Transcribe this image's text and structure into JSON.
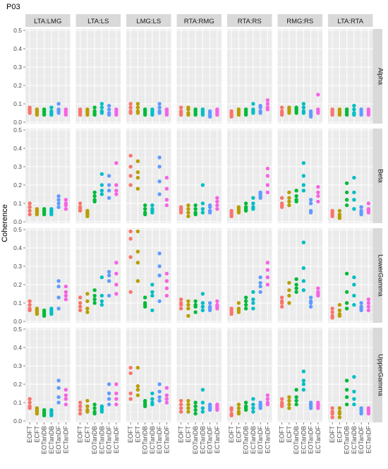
{
  "chart_data": {
    "type": "scatter",
    "title": "P03",
    "ylabel": "Coherence",
    "xlabel": "",
    "ylim": [
      0,
      0.5
    ],
    "y_ticks": [
      "0.0",
      "0.1",
      "0.2",
      "0.3",
      "0.4",
      "0.5"
    ],
    "categories": [
      "EOFT",
      "ECFT",
      "EOTanDB",
      "ECTanDB",
      "EOTanDF",
      "ECTanDF"
    ],
    "colors": [
      "#F8766D",
      "#B79F00",
      "#00BA38",
      "#00BFC4",
      "#619CFF",
      "#F564E3"
    ],
    "grid": true,
    "legend": "none",
    "columns": [
      "LTA:LMG",
      "LTA:LS",
      "LMG:LS",
      "RTA:RMG",
      "RTA:RS",
      "RMG:RS",
      "LTA:RTA"
    ],
    "rows": [
      "Alpha",
      "Beta",
      "LowerGamma",
      "UpperGamma"
    ],
    "panels": [
      [
        [
          [
            0.07,
            0.06,
            0.05,
            0.08
          ],
          [
            0.07,
            0.06,
            0.05,
            0.04
          ],
          [
            0.06,
            0.05,
            0.04,
            0.07
          ],
          [
            0.08,
            0.06,
            0.05,
            0.04
          ],
          [
            0.1,
            0.07,
            0.06,
            0.05
          ],
          [
            0.06,
            0.05,
            0.04,
            0.07
          ]
        ],
        [
          [
            0.07,
            0.06,
            0.05,
            0.04
          ],
          [
            0.07,
            0.06,
            0.05,
            0.04
          ],
          [
            0.08,
            0.06,
            0.05,
            0.04
          ],
          [
            0.1,
            0.08,
            0.06,
            0.05
          ],
          [
            0.09,
            0.07,
            0.05,
            0.04
          ],
          [
            0.07,
            0.06,
            0.05,
            0.04
          ]
        ],
        [
          [
            0.1,
            0.08,
            0.06,
            0.05
          ],
          [
            0.1,
            0.08,
            0.06,
            0.05
          ],
          [
            0.07,
            0.06,
            0.05,
            0.04
          ],
          [
            0.07,
            0.06,
            0.05,
            0.04
          ],
          [
            0.1,
            0.08,
            0.06,
            0.05
          ],
          [
            0.06,
            0.05,
            0.04,
            0.07
          ]
        ],
        [
          [
            0.08,
            0.06,
            0.05,
            0.04
          ],
          [
            0.08,
            0.07,
            0.05,
            0.04
          ],
          [
            0.07,
            0.06,
            0.05,
            0.04
          ],
          [
            0.07,
            0.06,
            0.05,
            0.04
          ],
          [
            0.06,
            0.05,
            0.04,
            0.03
          ],
          [
            0.06,
            0.05,
            0.04,
            0.07
          ]
        ],
        [
          [
            0.06,
            0.05,
            0.04,
            0.03
          ],
          [
            0.06,
            0.05,
            0.04,
            0.07
          ],
          [
            0.06,
            0.05,
            0.04,
            0.07
          ],
          [
            0.1,
            0.07,
            0.06,
            0.05
          ],
          [
            0.09,
            0.08,
            0.06,
            0.05
          ],
          [
            0.12,
            0.1,
            0.08,
            0.07
          ]
        ],
        [
          [
            0.08,
            0.06,
            0.05,
            0.04
          ],
          [
            0.08,
            0.07,
            0.06,
            0.05
          ],
          [
            0.08,
            0.07,
            0.06,
            0.05
          ],
          [
            0.1,
            0.08,
            0.06,
            0.05
          ],
          [
            0.06,
            0.05,
            0.04,
            0.03
          ],
          [
            0.15,
            0.07,
            0.06,
            0.05
          ]
        ],
        [
          [
            0.06,
            0.05,
            0.04,
            0.07
          ],
          [
            0.06,
            0.05,
            0.04,
            0.07
          ],
          [
            0.07,
            0.06,
            0.05,
            0.04
          ],
          [
            0.09,
            0.07,
            0.05,
            0.04
          ],
          [
            0.06,
            0.05,
            0.04,
            0.07
          ],
          [
            0.07,
            0.06,
            0.05,
            0.04
          ]
        ]
      ],
      [
        [
          [
            0.1,
            0.08,
            0.06,
            0.04
          ],
          [
            0.07,
            0.06,
            0.05,
            0.04
          ],
          [
            0.07,
            0.06,
            0.05,
            0.04
          ],
          [
            0.06,
            0.05,
            0.04,
            0.07
          ],
          [
            0.14,
            0.12,
            0.1,
            0.08
          ],
          [
            0.12,
            0.1,
            0.09,
            0.07
          ]
        ],
        [
          [
            0.1,
            0.08,
            0.07,
            0.06
          ],
          [
            0.06,
            0.05,
            0.04,
            0.03
          ],
          [
            0.16,
            0.14,
            0.12,
            0.11
          ],
          [
            0.26,
            0.2,
            0.17,
            0.15
          ],
          [
            0.25,
            0.2,
            0.17,
            0.13
          ],
          [
            0.32,
            0.2,
            0.17,
            0.15
          ]
        ],
        [
          [
            0.36,
            0.3,
            0.25,
            0.2
          ],
          [
            0.33,
            0.27,
            0.24,
            0.18
          ],
          [
            0.09,
            0.07,
            0.05,
            0.04
          ],
          [
            0.09,
            0.07,
            0.06,
            0.05
          ],
          [
            0.35,
            0.3,
            0.22,
            0.15
          ],
          [
            0.24,
            0.18,
            0.12,
            0.09
          ]
        ],
        [
          [
            0.08,
            0.07,
            0.06,
            0.05
          ],
          [
            0.09,
            0.07,
            0.05,
            0.03
          ],
          [
            0.09,
            0.07,
            0.05,
            0.04
          ],
          [
            0.2,
            0.1,
            0.07,
            0.05
          ],
          [
            0.09,
            0.08,
            0.06,
            0.05
          ],
          [
            0.13,
            0.11,
            0.09,
            0.07
          ]
        ],
        [
          [
            0.06,
            0.05,
            0.04,
            0.03
          ],
          [
            0.08,
            0.07,
            0.06,
            0.05
          ],
          [
            0.1,
            0.08,
            0.07,
            0.06
          ],
          [
            0.13,
            0.1,
            0.08,
            0.07
          ],
          [
            0.16,
            0.15,
            0.14,
            0.13
          ],
          [
            0.29,
            0.25,
            0.2,
            0.16
          ]
        ],
        [
          [
            0.13,
            0.1,
            0.09,
            0.08
          ],
          [
            0.16,
            0.13,
            0.11,
            0.09
          ],
          [
            0.17,
            0.14,
            0.12,
            0.11
          ],
          [
            0.32,
            0.25,
            0.2,
            0.17
          ],
          [
            0.12,
            0.1,
            0.06,
            0.05
          ],
          [
            0.19,
            0.16,
            0.14,
            0.11
          ]
        ],
        [
          [
            0.06,
            0.05,
            0.04,
            0.03
          ],
          [
            0.06,
            0.04,
            0.03,
            0.02
          ],
          [
            0.21,
            0.16,
            0.12,
            0.09
          ],
          [
            0.24,
            0.16,
            0.12,
            0.07
          ],
          [
            0.08,
            0.06,
            0.05,
            0.04
          ],
          [
            0.1,
            0.07,
            0.06,
            0.05
          ]
        ]
      ],
      [
        [
          [
            0.11,
            0.09,
            0.07,
            0.06
          ],
          [
            0.07,
            0.06,
            0.05,
            0.04
          ],
          [
            0.06,
            0.05,
            0.04,
            0.03
          ],
          [
            0.07,
            0.06,
            0.05,
            0.04
          ],
          [
            0.22,
            0.19,
            0.13,
            0.07
          ],
          [
            0.19,
            0.16,
            0.14,
            0.12
          ]
        ],
        [
          [
            0.13,
            0.1,
            0.08,
            0.06
          ],
          [
            0.15,
            0.11,
            0.07,
            0.05
          ],
          [
            0.17,
            0.14,
            0.12,
            0.1
          ],
          [
            0.24,
            0.14,
            0.11,
            0.09
          ],
          [
            0.27,
            0.25,
            0.22,
            0.14
          ],
          [
            0.32,
            0.26,
            0.2,
            0.15
          ]
        ],
        [
          [
            0.49,
            0.45,
            0.35,
            0.16
          ],
          [
            0.49,
            0.38,
            0.32,
            0.22
          ],
          [
            0.13,
            0.1,
            0.09,
            0.08
          ],
          [
            0.2,
            0.16,
            0.14,
            0.06
          ],
          [
            0.37,
            0.3,
            0.25,
            0.11
          ],
          [
            0.26,
            0.22,
            0.18,
            0.14
          ]
        ],
        [
          [
            0.12,
            0.1,
            0.09,
            0.07
          ],
          [
            0.11,
            0.09,
            0.07,
            0.03
          ],
          [
            0.11,
            0.09,
            0.08,
            0.05
          ],
          [
            0.15,
            0.1,
            0.08,
            0.06
          ],
          [
            0.1,
            0.08,
            0.07,
            0.06
          ],
          [
            0.11,
            0.09,
            0.08,
            0.07
          ]
        ],
        [
          [
            0.07,
            0.06,
            0.05,
            0.04
          ],
          [
            0.1,
            0.07,
            0.06,
            0.05
          ],
          [
            0.13,
            0.11,
            0.09,
            0.07
          ],
          [
            0.16,
            0.12,
            0.1,
            0.07
          ],
          [
            0.24,
            0.21,
            0.19,
            0.16
          ],
          [
            0.32,
            0.28,
            0.24,
            0.2
          ]
        ],
        [
          [
            0.13,
            0.11,
            0.1,
            0.08
          ],
          [
            0.21,
            0.17,
            0.14,
            0.1
          ],
          [
            0.23,
            0.2,
            0.18,
            0.16
          ],
          [
            0.43,
            0.29,
            0.22,
            0.17
          ],
          [
            0.13,
            0.11,
            0.1,
            0.08
          ],
          [
            0.18,
            0.16,
            0.15,
            0.14
          ]
        ],
        [
          [
            0.07,
            0.05,
            0.03,
            0.02
          ],
          [
            0.09,
            0.06,
            0.04,
            0.03
          ],
          [
            0.26,
            0.16,
            0.1,
            0.07
          ],
          [
            0.24,
            0.2,
            0.14,
            0.09
          ],
          [
            0.1,
            0.08,
            0.07,
            0.06
          ],
          [
            0.12,
            0.1,
            0.08,
            0.06
          ]
        ]
      ],
      [
        [
          [
            0.12,
            0.1,
            0.08,
            0.07
          ],
          [
            0.07,
            0.06,
            0.05,
            0.04
          ],
          [
            0.06,
            0.05,
            0.04,
            0.03
          ],
          [
            0.06,
            0.05,
            0.04,
            0.03
          ],
          [
            0.22,
            0.18,
            0.13,
            0.1
          ],
          [
            0.17,
            0.14,
            0.12,
            0.09
          ]
        ],
        [
          [
            0.1,
            0.08,
            0.06,
            0.04
          ],
          [
            0.11,
            0.08,
            0.06,
            0.05
          ],
          [
            0.09,
            0.07,
            0.05,
            0.04
          ],
          [
            0.08,
            0.07,
            0.06,
            0.05
          ],
          [
            0.2,
            0.15,
            0.12,
            0.09
          ],
          [
            0.2,
            0.15,
            0.12,
            0.09
          ]
        ],
        [
          [
            0.29,
            0.26,
            0.15,
            0.12
          ],
          [
            0.29,
            0.19,
            0.17,
            0.14
          ],
          [
            0.11,
            0.1,
            0.09,
            0.08
          ],
          [
            0.15,
            0.12,
            0.1,
            0.09
          ],
          [
            0.2,
            0.16,
            0.13,
            0.11
          ],
          [
            0.18,
            0.14,
            0.12,
            0.1
          ]
        ],
        [
          [
            0.11,
            0.09,
            0.07,
            0.05
          ],
          [
            0.11,
            0.09,
            0.07,
            0.05
          ],
          [
            0.1,
            0.08,
            0.06,
            0.04
          ],
          [
            0.17,
            0.1,
            0.07,
            0.05
          ],
          [
            0.09,
            0.08,
            0.07,
            0.06
          ],
          [
            0.09,
            0.08,
            0.07,
            0.06
          ]
        ],
        [
          [
            0.07,
            0.06,
            0.04,
            0.03
          ],
          [
            0.09,
            0.07,
            0.05,
            0.04
          ],
          [
            0.1,
            0.08,
            0.07,
            0.06
          ],
          [
            0.12,
            0.09,
            0.07,
            0.05
          ],
          [
            0.1,
            0.09,
            0.08,
            0.07
          ],
          [
            0.14,
            0.12,
            0.1,
            0.09
          ]
        ],
        [
          [
            0.12,
            0.1,
            0.09,
            0.08
          ],
          [
            0.13,
            0.11,
            0.09,
            0.07
          ],
          [
            0.17,
            0.13,
            0.11,
            0.09
          ],
          [
            0.27,
            0.22,
            0.2,
            0.17
          ],
          [
            0.1,
            0.09,
            0.08,
            0.07
          ],
          [
            0.1,
            0.09,
            0.08,
            0.07
          ]
        ],
        [
          [
            0.07,
            0.05,
            0.04,
            0.02
          ],
          [
            0.07,
            0.05,
            0.04,
            0.02
          ],
          [
            0.22,
            0.17,
            0.13,
            0.09
          ],
          [
            0.24,
            0.16,
            0.12,
            0.09
          ],
          [
            0.07,
            0.06,
            0.05,
            0.04
          ],
          [
            0.07,
            0.06,
            0.05,
            0.04
          ]
        ]
      ]
    ]
  }
}
